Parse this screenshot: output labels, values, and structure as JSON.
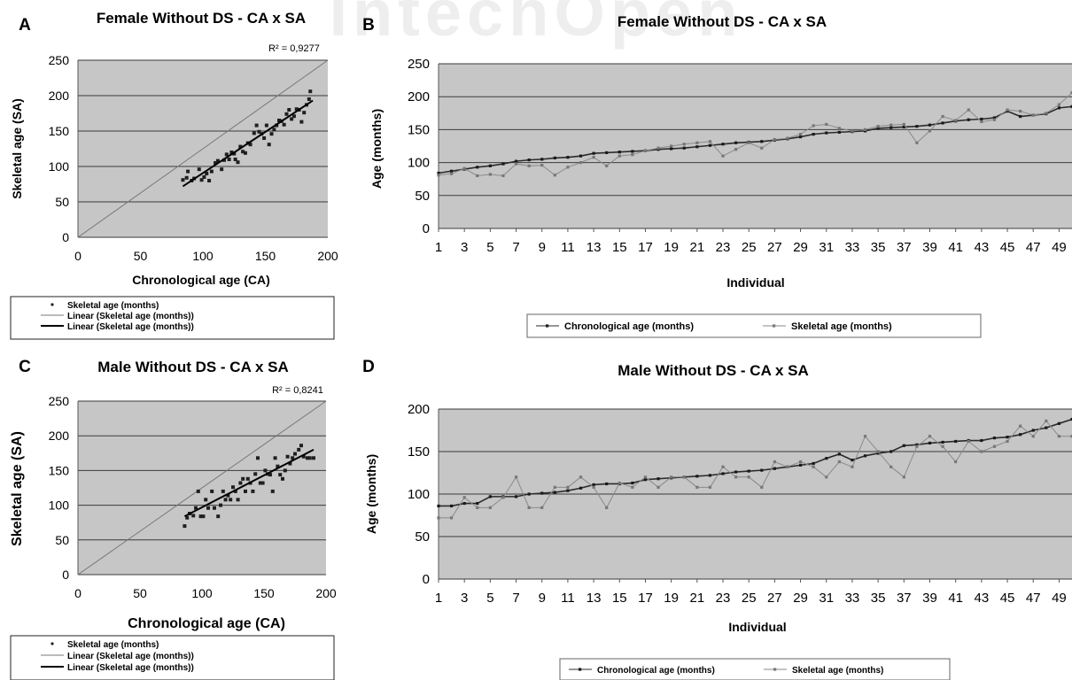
{
  "watermark": "IntechOpen",
  "chart_data": [
    {
      "panel": "A",
      "type": "scatter",
      "title": "Female Without DS - CA x SA",
      "xlabel": "Chronological age (CA)",
      "ylabel": "Skeletal age (SA)",
      "xlim": [
        0,
        200
      ],
      "ylim": [
        0,
        250
      ],
      "xticks": [
        0,
        50,
        100,
        150,
        200
      ],
      "yticks": [
        0,
        50,
        100,
        150,
        200,
        250
      ],
      "annotation": "R² = 0,9277",
      "legend": [
        "Skeletal age (months)",
        "Linear (Skeletal age (months))",
        "Linear (Skeletal age (months))"
      ],
      "legend_position": "bottom",
      "grid": true,
      "points": [
        [
          84,
          81
        ],
        [
          87,
          84
        ],
        [
          88,
          93
        ],
        [
          91,
          80
        ],
        [
          93,
          83
        ],
        [
          97,
          96
        ],
        [
          99,
          81
        ],
        [
          101,
          85
        ],
        [
          103,
          90
        ],
        [
          105,
          80
        ],
        [
          107,
          93
        ],
        [
          110,
          105
        ],
        [
          112,
          108
        ],
        [
          115,
          96
        ],
        [
          117,
          109
        ],
        [
          119,
          117
        ],
        [
          121,
          110
        ],
        [
          123,
          120
        ],
        [
          125,
          118
        ],
        [
          126,
          110
        ],
        [
          128,
          106
        ],
        [
          130,
          128
        ],
        [
          132,
          121
        ],
        [
          134,
          119
        ],
        [
          136,
          133
        ],
        [
          138,
          131
        ],
        [
          141,
          147
        ],
        [
          143,
          158
        ],
        [
          145,
          149
        ],
        [
          147,
          146
        ],
        [
          149,
          140
        ],
        [
          151,
          158
        ],
        [
          153,
          131
        ],
        [
          155,
          146
        ],
        [
          157,
          152
        ],
        [
          159,
          158
        ],
        [
          161,
          165
        ],
        [
          163,
          164
        ],
        [
          165,
          159
        ],
        [
          167,
          174
        ],
        [
          169,
          180
        ],
        [
          171,
          167
        ],
        [
          173,
          171
        ],
        [
          175,
          181
        ],
        [
          177,
          180
        ],
        [
          179,
          163
        ],
        [
          181,
          176
        ],
        [
          183,
          187
        ],
        [
          185,
          195
        ],
        [
          186,
          206
        ]
      ],
      "reference_line": [
        [
          0,
          0
        ],
        [
          200,
          250
        ]
      ],
      "fit_line": [
        [
          84,
          72
        ],
        [
          188,
          193
        ]
      ]
    },
    {
      "panel": "B",
      "type": "line",
      "title": "Female Without DS - CA x SA",
      "xlabel": "Individual",
      "ylabel": "Age (months)",
      "xlim": [
        1,
        50
      ],
      "ylim": [
        0,
        250
      ],
      "xticks": [
        1,
        3,
        5,
        7,
        9,
        11,
        13,
        15,
        17,
        19,
        21,
        23,
        25,
        27,
        29,
        31,
        33,
        35,
        37,
        39,
        41,
        43,
        45,
        47,
        49
      ],
      "yticks": [
        0,
        50,
        100,
        150,
        200,
        250
      ],
      "legend_position": "bottom",
      "grid": true,
      "series": [
        {
          "name": "Chronological age (months)",
          "values": [
            84,
            87,
            90,
            93,
            95,
            98,
            102,
            104,
            105,
            107,
            108,
            110,
            114,
            115,
            116,
            117,
            118,
            120,
            121,
            122,
            124,
            126,
            128,
            130,
            131,
            132,
            134,
            136,
            139,
            143,
            145,
            146,
            147,
            148,
            152,
            153,
            154,
            155,
            157,
            160,
            163,
            165,
            166,
            168,
            178,
            170,
            172,
            174,
            183,
            185
          ]
        },
        {
          "name": "Skeletal age (months)",
          "values": [
            81,
            83,
            91,
            80,
            82,
            80,
            98,
            95,
            96,
            81,
            93,
            100,
            108,
            95,
            110,
            112,
            118,
            122,
            125,
            128,
            130,
            132,
            110,
            120,
            130,
            122,
            135,
            137,
            143,
            156,
            158,
            152,
            148,
            150,
            155,
            157,
            158,
            130,
            148,
            170,
            164,
            180,
            162,
            165,
            180,
            178,
            172,
            175,
            188,
            206
          ]
        }
      ]
    },
    {
      "panel": "C",
      "type": "scatter",
      "title": "Male Without DS - CA x SA",
      "xlabel": "Chronological age (CA)",
      "ylabel": "Skeletal age (SA)",
      "xlim": [
        0,
        200
      ],
      "ylim": [
        0,
        250
      ],
      "xticks": [
        0,
        50,
        100,
        150,
        200
      ],
      "yticks": [
        0,
        50,
        100,
        150,
        200,
        250
      ],
      "annotation": "R² = 0,8241",
      "legend": [
        "Skeletal age (months)",
        "Linear (Skeletal age (months))",
        "Linear (Skeletal age (months))"
      ],
      "legend_position": "bottom",
      "grid": true,
      "points": [
        [
          86,
          70
        ],
        [
          88,
          82
        ],
        [
          90,
          88
        ],
        [
          93,
          85
        ],
        [
          95,
          96
        ],
        [
          97,
          120
        ],
        [
          99,
          84
        ],
        [
          101,
          84
        ],
        [
          103,
          108
        ],
        [
          105,
          96
        ],
        [
          108,
          120
        ],
        [
          110,
          96
        ],
        [
          113,
          84
        ],
        [
          115,
          100
        ],
        [
          117,
          120
        ],
        [
          119,
          108
        ],
        [
          121,
          114
        ],
        [
          123,
          108
        ],
        [
          125,
          126
        ],
        [
          127,
          120
        ],
        [
          129,
          108
        ],
        [
          131,
          132
        ],
        [
          133,
          138
        ],
        [
          135,
          120
        ],
        [
          137,
          138
        ],
        [
          139,
          132
        ],
        [
          141,
          120
        ],
        [
          143,
          145
        ],
        [
          145,
          168
        ],
        [
          147,
          132
        ],
        [
          149,
          132
        ],
        [
          151,
          150
        ],
        [
          153,
          145
        ],
        [
          155,
          144
        ],
        [
          157,
          120
        ],
        [
          159,
          168
        ],
        [
          161,
          156
        ],
        [
          163,
          144
        ],
        [
          165,
          138
        ],
        [
          167,
          150
        ],
        [
          169,
          170
        ],
        [
          171,
          160
        ],
        [
          173,
          168
        ],
        [
          175,
          174
        ],
        [
          178,
          180
        ],
        [
          180,
          186
        ],
        [
          182,
          170
        ],
        [
          185,
          168
        ],
        [
          187,
          168
        ],
        [
          190,
          168
        ]
      ],
      "reference_line": [
        [
          0,
          0
        ],
        [
          200,
          250
        ]
      ],
      "fit_line": [
        [
          86,
          84
        ],
        [
          190,
          180
        ]
      ]
    },
    {
      "panel": "D",
      "type": "line",
      "title": "Male Without DS - CA x SA",
      "xlabel": "Individual",
      "ylabel": "Age (months)",
      "xlim": [
        1,
        50
      ],
      "ylim": [
        0,
        200
      ],
      "xticks": [
        1,
        3,
        5,
        7,
        9,
        11,
        13,
        15,
        17,
        19,
        21,
        23,
        25,
        27,
        29,
        31,
        33,
        35,
        37,
        39,
        41,
        43,
        45,
        47,
        49
      ],
      "yticks": [
        0,
        50,
        100,
        150,
        200
      ],
      "legend_position": "bottom",
      "grid": true,
      "series": [
        {
          "name": "Chronological age (months)",
          "values": [
            86,
            86,
            89,
            89,
            97,
            97,
            97,
            100,
            101,
            102,
            104,
            107,
            111,
            112,
            112,
            113,
            117,
            118,
            119,
            120,
            121,
            122,
            124,
            126,
            127,
            128,
            130,
            132,
            134,
            136,
            142,
            147,
            140,
            145,
            148,
            150,
            157,
            158,
            160,
            161,
            162,
            163,
            163,
            166,
            167,
            170,
            175,
            178,
            183,
            188
          ]
        },
        {
          "name": "Skeletal age (months)",
          "values": [
            72,
            72,
            96,
            84,
            84,
            96,
            120,
            84,
            84,
            108,
            108,
            120,
            108,
            84,
            113,
            108,
            120,
            108,
            120,
            120,
            108,
            108,
            132,
            120,
            120,
            108,
            138,
            132,
            138,
            132,
            120,
            138,
            132,
            168,
            150,
            132,
            120,
            156,
            168,
            156,
            138,
            162,
            150,
            156,
            162,
            180,
            168,
            186,
            168,
            168
          ]
        }
      ]
    }
  ]
}
